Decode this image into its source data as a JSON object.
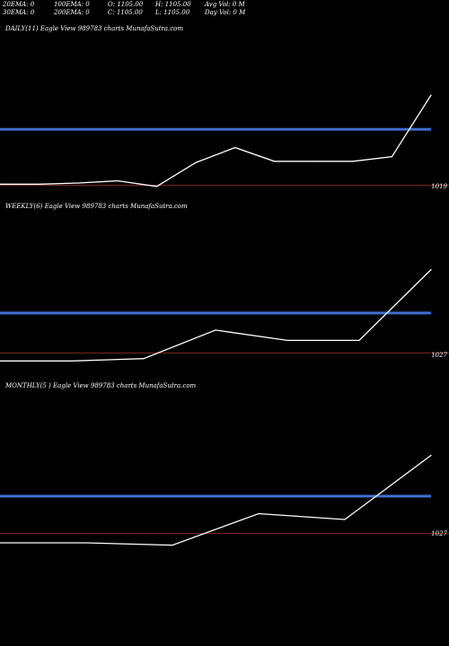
{
  "header": {
    "row1": [
      "20EMA: 0",
      "100EMA: 0",
      "O: 1105.00",
      "H: 1105.00",
      "Avg Vol: 0  M"
    ],
    "row2": [
      "30EMA: 0",
      "200EMA: 0",
      "C: 1105.00",
      "L: 1105.00",
      "Day Vol: 0  M"
    ]
  },
  "colors": {
    "background": "#000000",
    "price_line": "#ffffff",
    "ema_band": "#3f6fd1",
    "reference_line": "#7a2b1f"
  },
  "chart_data": [
    {
      "type": "line",
      "panel": "daily",
      "title": "DAILY(11) Eagle  View  989783 charts MunafaSutra.com",
      "price_label": "1019",
      "series": [
        {
          "values": [
            0,
            0,
            1,
            3,
            -2,
            19,
            32,
            20,
            20,
            20,
            24,
            78
          ]
        }
      ],
      "blue_line_level": 48,
      "reference_level": -1,
      "ylim": [
        -10,
        100
      ]
    },
    {
      "type": "line",
      "panel": "weekly",
      "title": "WEEKLY(6) Eagle  View  989783 charts MunafaSutra.com",
      "price_label": "1027",
      "series": [
        {
          "values": [
            0,
            0,
            2,
            27,
            18,
            18,
            80
          ]
        }
      ],
      "blue_line_level": 42,
      "reference_level": 7,
      "ylim": [
        -10,
        100
      ]
    },
    {
      "type": "line",
      "panel": "monthly",
      "title": "MONTHLY(5          ) Eagle  View  989783 charts MunafaSutra.com",
      "price_label": "1027",
      "series": [
        {
          "values": [
            0,
            0,
            -2,
            25,
            20,
            75
          ]
        }
      ],
      "blue_line_level": 40,
      "reference_level": 8,
      "ylim": [
        -10,
        100
      ]
    }
  ]
}
